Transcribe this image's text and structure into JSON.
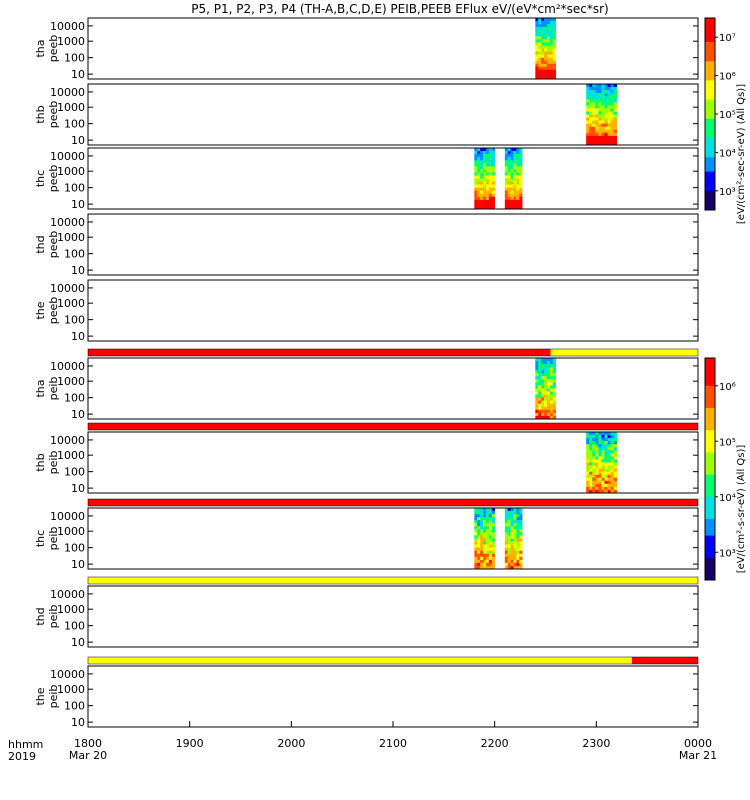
{
  "chart_data": {
    "type": "heatmap",
    "title": "P5, P1, P2, P3, P4 (TH-A,B,C,D,E) PEIB,PEEB EFlux eV/(eV*cm²*sec*sr)",
    "x_corner_labels": [
      "hhmm",
      "2019"
    ],
    "x_ticks": [
      {
        "label": "1800",
        "sub": "Mar 20"
      },
      {
        "label": "1900",
        "sub": ""
      },
      {
        "label": "2000",
        "sub": ""
      },
      {
        "label": "2100",
        "sub": ""
      },
      {
        "label": "2200",
        "sub": ""
      },
      {
        "label": "2300",
        "sub": ""
      },
      {
        "label": "0000",
        "sub": "Mar 21"
      }
    ],
    "y_ticks": [
      "10000",
      "1000",
      "100",
      "10"
    ],
    "ylim": [
      5,
      30000
    ],
    "y_scale": "log",
    "colorbars": [
      {
        "name": "electrons",
        "unit_label": "[eV/(cm²-sec-sr-eV) (All Qs)]",
        "tick_labels": [
          "10³",
          "10⁴",
          "10⁵",
          "10⁶",
          "10⁷"
        ]
      },
      {
        "name": "ions",
        "unit_label": "[eV/(cm²-s-sr-eV) (All Qs)]",
        "tick_labels": [
          "10³",
          "10⁴",
          "10⁵",
          "10⁶"
        ]
      }
    ],
    "panels": [
      {
        "label1": "tha",
        "label2": "peeb",
        "mode_bar": null,
        "blocks": [
          [
            22.4,
            22.6
          ]
        ]
      },
      {
        "label1": "thb",
        "label2": "peeb",
        "mode_bar": null,
        "blocks": [
          [
            22.9,
            23.2
          ]
        ]
      },
      {
        "label1": "thc",
        "label2": "peeb",
        "mode_bar": null,
        "blocks": [
          [
            21.8,
            22.0
          ],
          [
            22.1,
            22.27
          ]
        ]
      },
      {
        "label1": "thd",
        "label2": "peeb",
        "mode_bar": null,
        "blocks": []
      },
      {
        "label1": "the",
        "label2": "peeb",
        "mode_bar": null,
        "blocks": []
      },
      {
        "label1": "tha",
        "label2": "peib",
        "mode_bar": [
          {
            "from": 18.0,
            "to": 22.55,
            "color": "#ff0000"
          },
          {
            "from": 22.55,
            "to": 24.0,
            "color": "#ffff00"
          }
        ],
        "blocks": [
          [
            22.4,
            22.6
          ]
        ]
      },
      {
        "label1": "thb",
        "label2": "peib",
        "mode_bar": [
          {
            "from": 18.0,
            "to": 24.0,
            "color": "#ff0000"
          }
        ],
        "blocks": [
          [
            22.9,
            23.2
          ]
        ]
      },
      {
        "label1": "thc",
        "label2": "peib",
        "mode_bar": [
          {
            "from": 18.0,
            "to": 24.0,
            "color": "#ff0000"
          }
        ],
        "blocks": [
          [
            21.8,
            22.0
          ],
          [
            22.1,
            22.27
          ]
        ]
      },
      {
        "label1": "thd",
        "label2": "peib",
        "mode_bar": [
          {
            "from": 18.0,
            "to": 24.0,
            "color": "#ffff00"
          }
        ],
        "blocks": []
      },
      {
        "label1": "the",
        "label2": "peib",
        "mode_bar": [
          {
            "from": 18.0,
            "to": 23.35,
            "color": "#ffff00"
          },
          {
            "from": 23.35,
            "to": 24.0,
            "color": "#ff0000"
          }
        ],
        "blocks": []
      }
    ]
  }
}
